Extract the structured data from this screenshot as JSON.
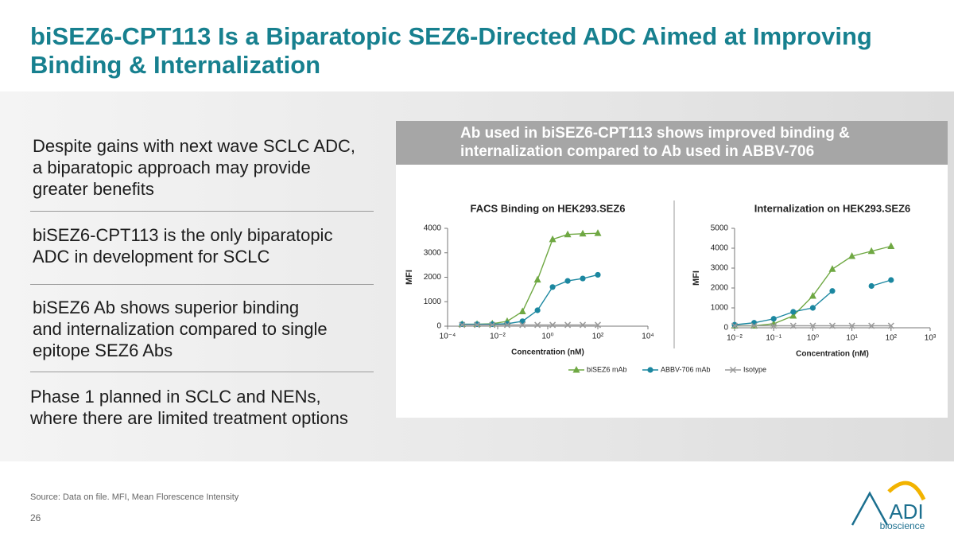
{
  "title": [
    "biSEZ6-CPT113 Is a Biparatopic SEZ6-Directed ADC Aimed at Improving",
    "Binding & Internalization"
  ],
  "bullets": [
    [
      "Despite gains with next wave SCLC ADC,",
      "a biparatopic approach may provide",
      "greater benefits"
    ],
    [
      "biSEZ6-CPT113 is the only biparatopic",
      "ADC in development for SCLC"
    ],
    [
      "biSEZ6 Ab shows superior binding",
      "and internalization compared to single",
      "epitope SEZ6 Abs"
    ],
    [
      "Phase 1 planned in SCLC and NENs,",
      "where there are limited treatment options"
    ]
  ],
  "panel_header": [
    "Ab used in biSEZ6-CPT113 shows improved binding &",
    "internalization compared to Ab used in ABBV-706"
  ],
  "chart_data": [
    {
      "type": "line",
      "title": "FACS Binding on HEK293.SEZ6",
      "x_label": "Concentration (nM)",
      "y_label": "MFI",
      "x_log": true,
      "x": [
        0.00038,
        0.0015,
        0.0061,
        0.024,
        0.098,
        0.39,
        1.5625,
        6.25,
        25,
        100
      ],
      "xlim": [
        0.0001,
        10000
      ],
      "xticks": [
        {
          "value": 0.0001,
          "label": "10⁻⁴"
        },
        {
          "value": 0.01,
          "label": "10⁻²"
        },
        {
          "value": 1,
          "label": "10⁰"
        },
        {
          "value": 100,
          "label": "10²"
        },
        {
          "value": 10000,
          "label": "10⁴"
        }
      ],
      "ylim": [
        0,
        4000
      ],
      "yticks": [
        0,
        1000,
        2000,
        3000,
        4000
      ],
      "series": [
        {
          "name": "biSEZ6 mAb",
          "color": "#6fa843",
          "marker": "triangle",
          "values": [
            80,
            80,
            100,
            200,
            600,
            1900,
            3550,
            3750,
            3780,
            3800
          ]
        },
        {
          "name": "ABBV-706 mAb",
          "color": "#1b87a0",
          "marker": "circle",
          "values": [
            80,
            80,
            80,
            100,
            200,
            650,
            1600,
            1850,
            1950,
            2100
          ]
        },
        {
          "name": "Isotype",
          "color": "#9a9a9a",
          "marker": "x",
          "values": [
            50,
            50,
            50,
            50,
            50,
            50,
            50,
            50,
            50,
            50
          ]
        }
      ]
    },
    {
      "type": "line",
      "title": "Internalization on HEK293.SEZ6",
      "x_label": "Concentration (nM)",
      "y_label": "MFI",
      "x_log": true,
      "x": [
        0.01,
        0.0316,
        0.1,
        0.316,
        1,
        3.16,
        10,
        31.6,
        100
      ],
      "xlim": [
        0.01,
        1000
      ],
      "xticks": [
        {
          "value": 0.01,
          "label": "10⁻²"
        },
        {
          "value": 0.1,
          "label": "10⁻¹"
        },
        {
          "value": 1,
          "label": "10⁰"
        },
        {
          "value": 10,
          "label": "10¹"
        },
        {
          "value": 100,
          "label": "10²"
        },
        {
          "value": 1000,
          "label": "10³"
        }
      ],
      "ylim": [
        0,
        5000
      ],
      "yticks": [
        0,
        1000,
        2000,
        3000,
        4000,
        5000
      ],
      "series": [
        {
          "color": "#6fa843",
          "marker": "triangle",
          "values": [
            100,
            100,
            200,
            600,
            1600,
            2950,
            3600,
            3850,
            4100
          ]
        },
        {
          "color": "#1b87a0",
          "marker": "circle",
          "values": [
            150,
            250,
            450,
            800,
            1000,
            1850,
            null,
            2100,
            2400
          ]
        },
        {
          "color": "#9a9a9a",
          "marker": "x",
          "values": [
            100,
            100,
            100,
            100,
            100,
            100,
            100,
            100,
            100
          ]
        }
      ]
    }
  ],
  "footer": {
    "source": "Source: Data on file. MFI, Mean Florescence Intensity",
    "page": "26"
  },
  "logo": {
    "brand": "ADI",
    "tagline": "bioscience"
  }
}
